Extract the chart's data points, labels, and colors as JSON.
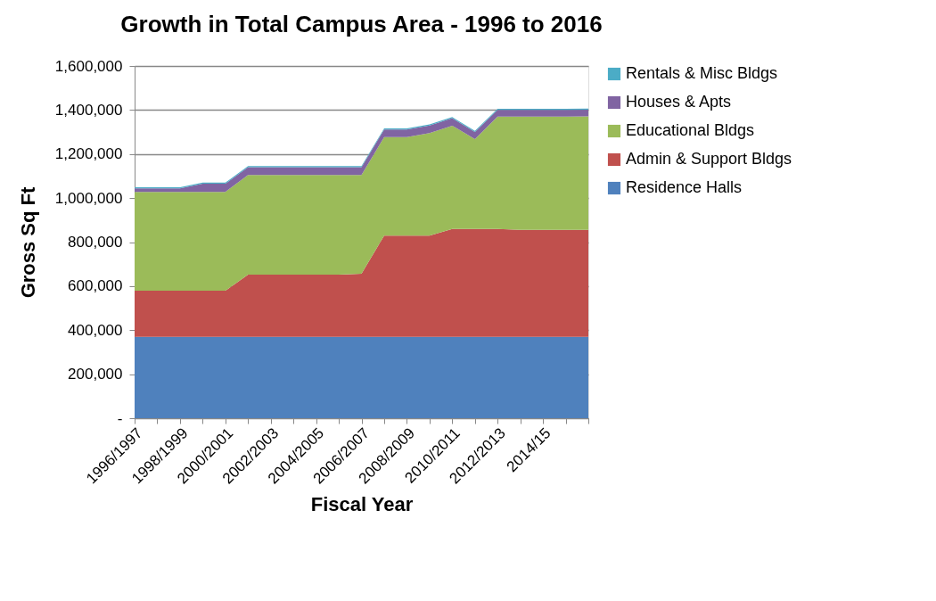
{
  "chart_data": {
    "type": "area",
    "stacked": true,
    "title": "Growth in Total Campus Area - 1996 to 2016",
    "xlabel": "Fiscal Year",
    "ylabel": "Gross Sq Ft",
    "categories": [
      "1996/1997",
      null,
      "1998/1999",
      null,
      "2000/2001",
      null,
      "2002/2003",
      null,
      "2004/2005",
      null,
      "2006/2007",
      null,
      "2008/2009",
      null,
      "2010/2011",
      null,
      "2012/2013",
      null,
      "2014/15",
      null,
      null
    ],
    "series": [
      {
        "name": "Residence Halls",
        "color": "#4f81bd",
        "values": [
          370000,
          370000,
          370000,
          370000,
          370000,
          370000,
          370000,
          370000,
          370000,
          370000,
          370000,
          370000,
          370000,
          370000,
          370000,
          370000,
          370000,
          370000,
          370000,
          370000,
          370000
        ]
      },
      {
        "name": "Admin & Support Bldgs",
        "color": "#c0504d",
        "values": [
          209000,
          209000,
          209000,
          209000,
          209000,
          282000,
          282000,
          282000,
          282000,
          282000,
          286000,
          459000,
          459000,
          459000,
          490000,
          490000,
          490000,
          486000,
          486000,
          486000,
          486000
        ]
      },
      {
        "name": "Educational Bldgs",
        "color": "#9bbb59",
        "values": [
          449000,
          449000,
          449000,
          449000,
          449000,
          453000,
          453000,
          453000,
          453000,
          453000,
          449000,
          448000,
          448000,
          466000,
          469000,
          408000,
          510000,
          514000,
          514000,
          514000,
          515000
        ]
      },
      {
        "name": "Houses & Apts",
        "color": "#8064a2",
        "values": [
          16000,
          16000,
          16000,
          37000,
          37000,
          35000,
          35000,
          35000,
          35000,
          35000,
          35000,
          34000,
          34000,
          35000,
          34000,
          32000,
          31000,
          31000,
          31000,
          31000,
          31000
        ]
      },
      {
        "name": "Rentals & Misc Bldgs",
        "color": "#4bacc6",
        "values": [
          5000,
          5000,
          5000,
          5000,
          5000,
          5000,
          5000,
          5000,
          5000,
          5000,
          5000,
          5000,
          5000,
          5000,
          5000,
          5000,
          5000,
          5000,
          5000,
          5000,
          5000
        ]
      }
    ],
    "ylim": [
      0,
      1600000
    ],
    "yticks": [
      {
        "value": 0,
        "label": "-"
      },
      {
        "value": 200000,
        "label": "200,000"
      },
      {
        "value": 400000,
        "label": "400,000"
      },
      {
        "value": 600000,
        "label": "600,000"
      },
      {
        "value": 800000,
        "label": "800,000"
      },
      {
        "value": 1000000,
        "label": "1,000,000"
      },
      {
        "value": 1200000,
        "label": "1,200,000"
      },
      {
        "value": 1400000,
        "label": "1,400,000"
      },
      {
        "value": 1600000,
        "label": "1,600,000"
      }
    ],
    "grid": "y",
    "legend": "right"
  }
}
